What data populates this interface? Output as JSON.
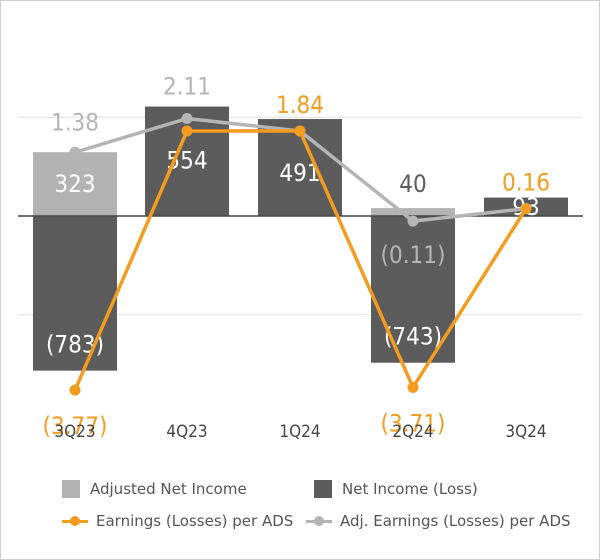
{
  "chart_data": {
    "type": "bar+line",
    "categories": [
      "3Q23",
      "4Q23",
      "1Q24",
      "2Q24",
      "3Q24"
    ],
    "bar_series": [
      {
        "name": "Adjusted Net Income",
        "values": [
          323,
          554,
          491,
          40,
          93
        ],
        "labels": [
          "323",
          "",
          "",
          "40",
          ""
        ],
        "color": "#b3b3b3"
      },
      {
        "name": "Net Income (Loss)",
        "values": [
          -783,
          554,
          491,
          -743,
          93
        ],
        "labels": [
          "(783)",
          "554",
          "491",
          "(743)",
          "93"
        ],
        "color": "#5c5c5c"
      }
    ],
    "line_series": [
      {
        "name": "Earnings (Losses) per ADS",
        "values": [
          -3.77,
          1.84,
          1.84,
          -3.71,
          0.16
        ],
        "labels": [
          "(3.77)",
          "",
          "1.84",
          "(3.71)",
          "0.16"
        ],
        "color": "#f39c1f"
      },
      {
        "name": "Adj. Earnings (Losses) per ADS",
        "values": [
          1.38,
          2.11,
          1.84,
          -0.11,
          0.16
        ],
        "labels": [
          "1.38",
          "2.11",
          "",
          "(0.11)",
          ""
        ],
        "color": "#b5b5b5"
      }
    ],
    "bar_ylim": [
      -900,
      650
    ],
    "line_ylim": [
      -4.7,
      2.84
    ],
    "gridlines": [
      -500,
      0,
      500
    ],
    "legend_position": "bottom",
    "colors": {
      "bar_label": "#ffffff",
      "outside_label_dark": "#5c5c5c",
      "gridline": "#e0e0e0",
      "axis": "#444444",
      "category_label": "#444444"
    }
  },
  "legend": {
    "adjusted_net_income": "Adjusted Net Income",
    "net_income": "Net Income (Loss)",
    "eps": "Earnings (Losses) per ADS",
    "adj_eps": "Adj. Earnings (Losses) per ADS"
  }
}
